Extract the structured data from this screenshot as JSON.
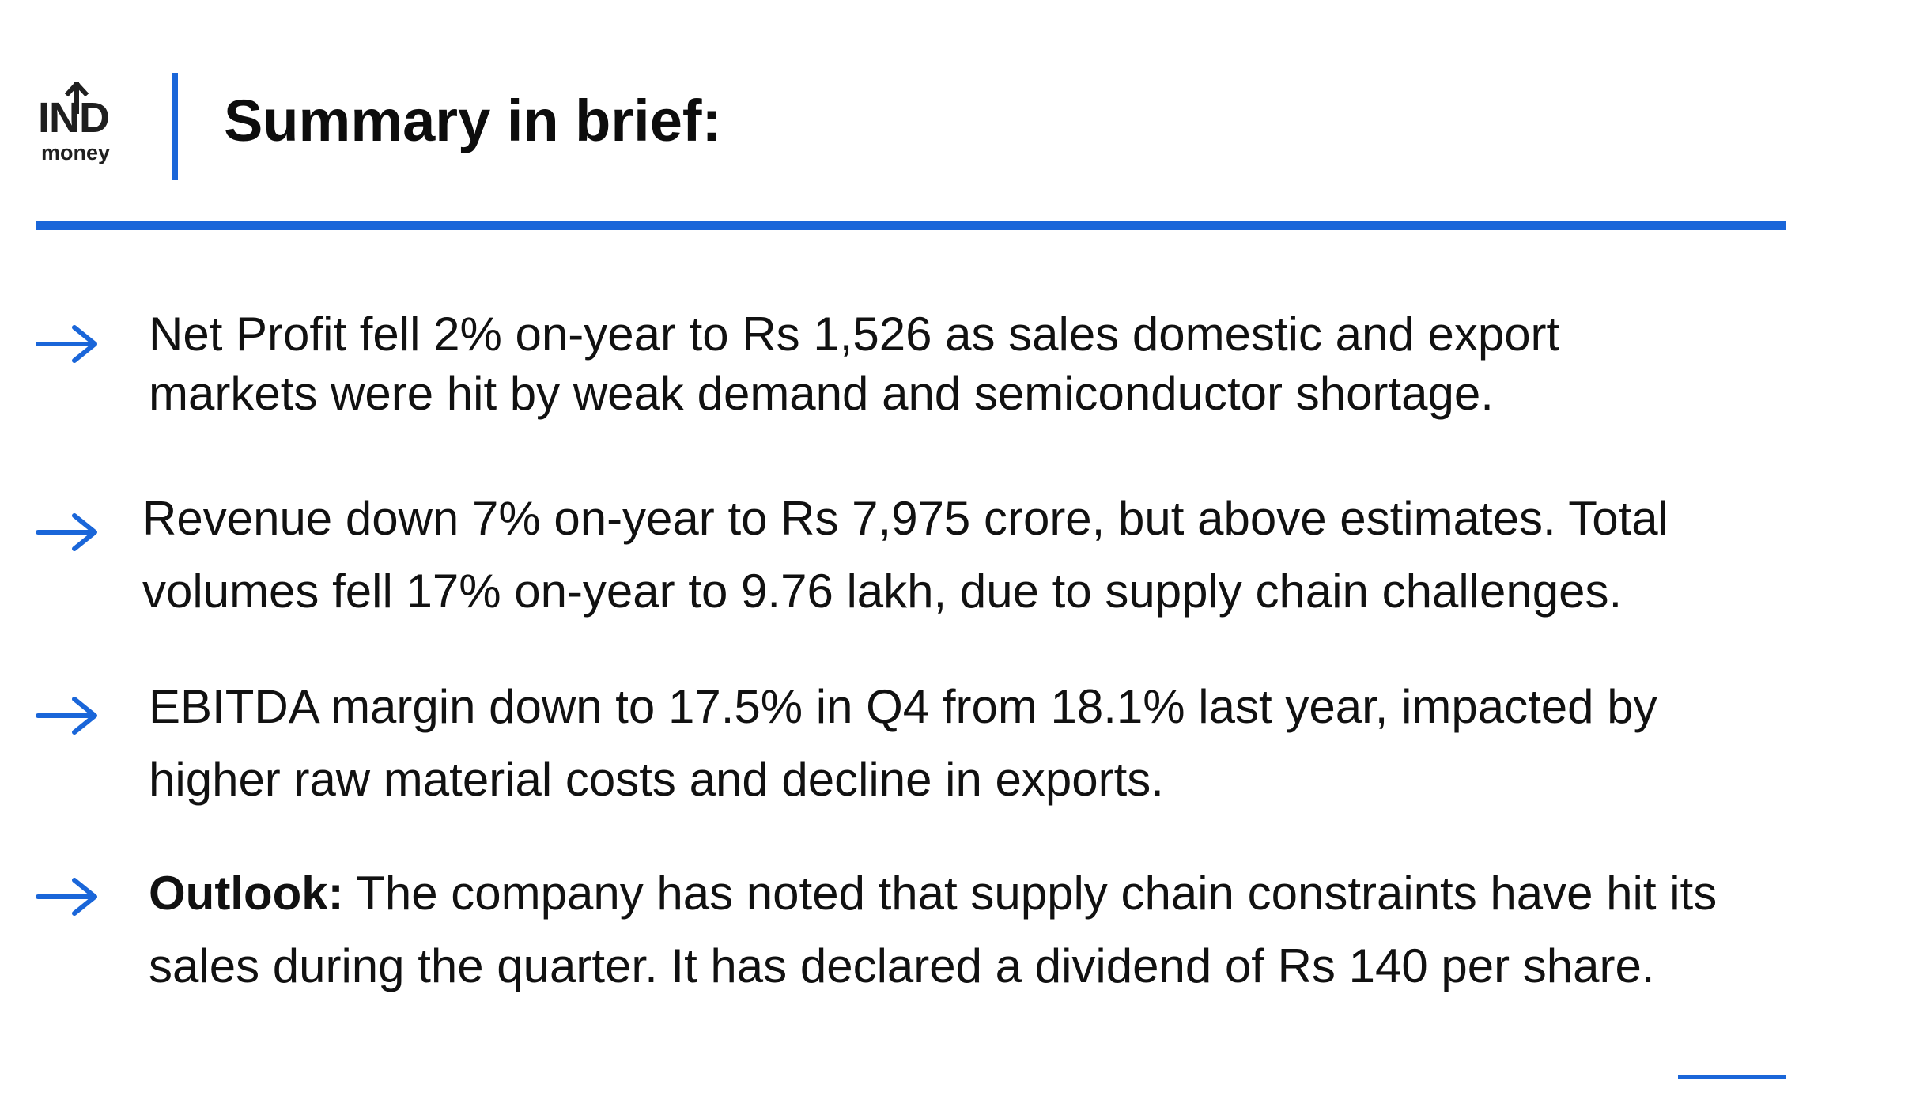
{
  "logo": {
    "top_text": "IND",
    "bottom_text": "money"
  },
  "header": {
    "title": "Summary in brief:"
  },
  "bullets": [
    {
      "icon": "arrow-right-icon",
      "lines": [
        "Net Profit fell 2% on-year to Rs 1,526 as sales domestic and export",
        "markets were hit by weak demand and semiconductor shortage."
      ]
    },
    {
      "icon": "arrow-right-icon",
      "lines": [
        "Revenue down 7% on-year to Rs 7,975 crore, but above estimates. Total",
        "volumes fell 17% on-year to 9.76 lakh, due to supply chain challenges."
      ]
    },
    {
      "icon": "arrow-right-icon",
      "lines": [
        "EBITDA margin down to 17.5% in Q4 from 18.1% last year, impacted by",
        "higher raw material costs and decline in exports."
      ]
    },
    {
      "icon": "arrow-right-icon",
      "bold_prefix": "Outlook:",
      "lines": [
        " The company has noted that supply chain constraints have hit its",
        "sales during the quarter. It has declared a dividend of Rs 140 per share."
      ]
    }
  ],
  "colors": {
    "accent": "#1a66d9",
    "text": "#111111"
  }
}
